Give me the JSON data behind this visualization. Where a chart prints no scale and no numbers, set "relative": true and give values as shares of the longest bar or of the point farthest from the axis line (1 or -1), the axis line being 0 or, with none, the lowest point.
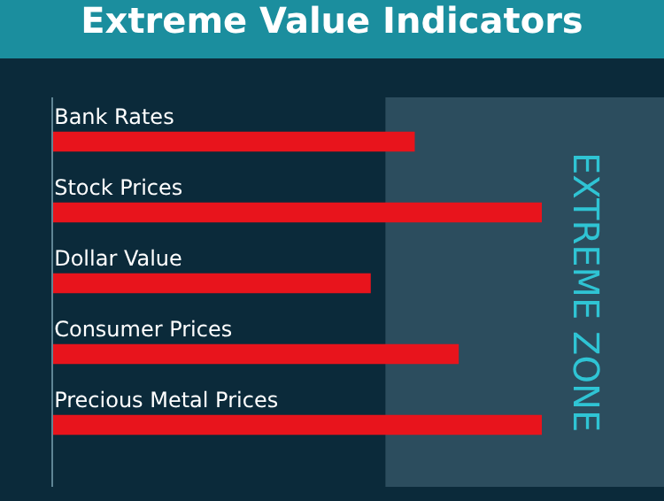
{
  "chart_data": {
    "type": "bar",
    "title": "Extreme Value Indicators",
    "orientation": "horizontal",
    "relative": true,
    "categories": [
      "Bank Rates",
      "Stock Prices",
      "Dollar Value",
      "Consumer Prices",
      "Precious Metal Prices"
    ],
    "values": [
      0.74,
      1.0,
      0.65,
      0.83,
      1.0
    ],
    "color": "#e8141c",
    "bands": [
      {
        "axis": "x",
        "from": 0.68,
        "to": 1.25,
        "label": "EXTREME ZONE",
        "color": "#8fb8cc"
      }
    ]
  }
}
